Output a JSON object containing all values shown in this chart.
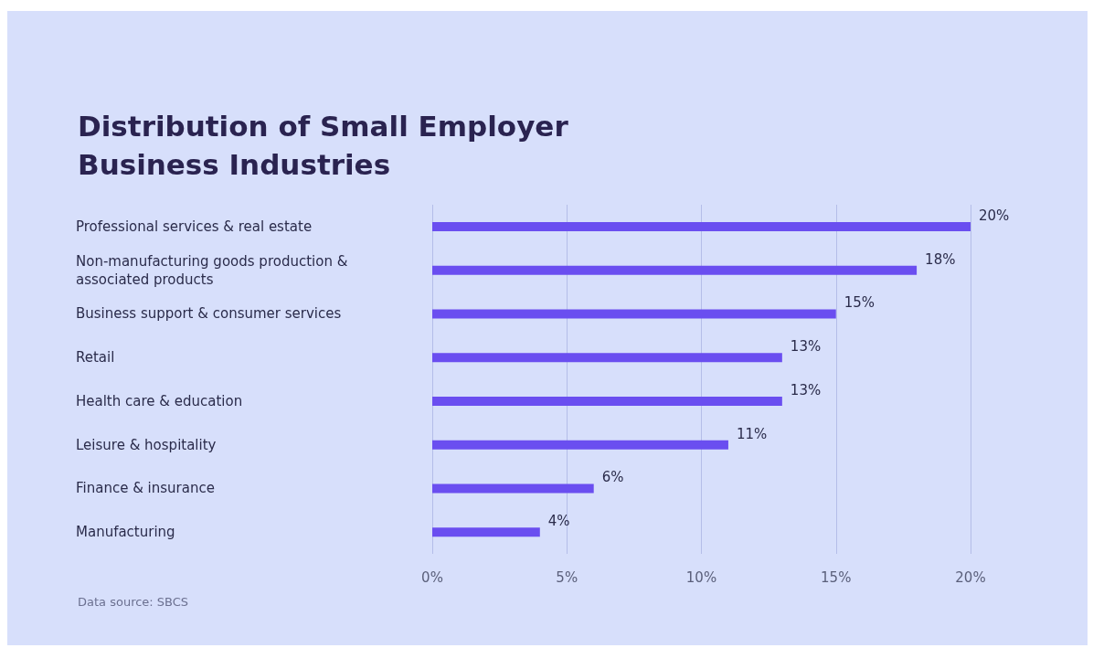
{
  "chart_data": {
    "type": "bar",
    "orientation": "horizontal",
    "title": "Distribution of Small Employer Business Industries",
    "categories": [
      "Professional services & real estate",
      "Non-manufacturing goods production & associated products",
      "Business support & consumer services",
      "Retail",
      "Health care & education",
      "Leisure & hospitality",
      "Finance & insurance",
      "Manufacturing"
    ],
    "values": [
      20,
      18,
      15,
      13,
      13,
      11,
      6,
      4
    ],
    "value_labels": [
      "20%",
      "18%",
      "15%",
      "13%",
      "13%",
      "11%",
      "6%",
      "4%"
    ],
    "color": "#6a4ef0",
    "xlim": [
      0,
      20
    ],
    "xticks": [
      {
        "value": 0,
        "label": "0%"
      },
      {
        "value": 5,
        "label": "5%"
      },
      {
        "value": 10,
        "label": "10%"
      },
      {
        "value": 15,
        "label": "15%"
      },
      {
        "value": 20,
        "label": "20%"
      }
    ],
    "grid": "x",
    "annotations": [
      "Data source: SBCS"
    ]
  }
}
